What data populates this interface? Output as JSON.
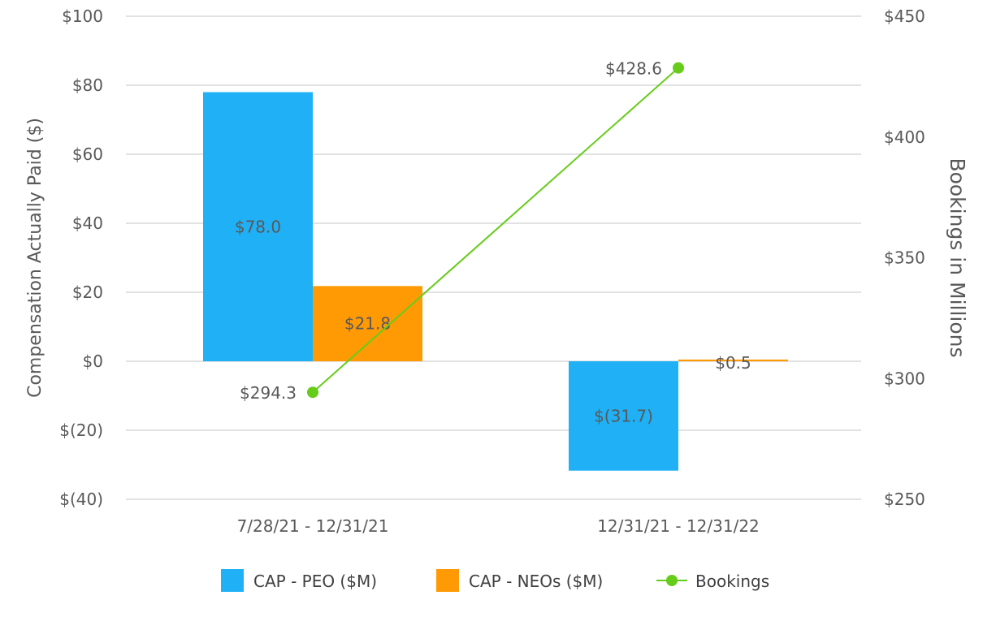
{
  "chart_data": {
    "type": "bar",
    "categories": [
      "7/28/21 - 12/31/21",
      "12/31/21 - 12/31/22"
    ],
    "series": [
      {
        "name": "CAP - PEO ($M)",
        "type": "bar",
        "axis": "left",
        "color": "#1fb0f5",
        "values": [
          78.0,
          -31.7
        ],
        "labels": [
          "$78.0",
          "$(31.7)"
        ]
      },
      {
        "name": "CAP - NEOs ($M)",
        "type": "bar",
        "axis": "left",
        "color": "#ff9a05",
        "values": [
          21.8,
          0.5
        ],
        "labels": [
          "$21.8",
          "$0.5"
        ]
      },
      {
        "name": "Bookings",
        "type": "line",
        "axis": "right",
        "color": "#66cc1a",
        "values": [
          294.3,
          428.6
        ],
        "labels": [
          "$294.3",
          "$428.6"
        ]
      }
    ],
    "y_left": {
      "label": "Compensation Actually Paid ($)",
      "ylim": [
        -40,
        100
      ],
      "ticks": [
        100,
        80,
        60,
        40,
        20,
        0,
        -20,
        -40
      ],
      "tick_labels": [
        "$100",
        "$80",
        "$60",
        "$40",
        "$20",
        "$0",
        "$(20)",
        "$(40)"
      ]
    },
    "y_right": {
      "label": "Bookings in Millions",
      "ylim": [
        250,
        450
      ],
      "ticks": [
        450,
        400,
        350,
        300,
        250
      ],
      "tick_labels": [
        "$450",
        "$400",
        "$350",
        "$300",
        "$250"
      ]
    },
    "legend": {
      "placement": "bottom",
      "items": [
        {
          "label": "CAP - PEO ($M)",
          "kind": "bar",
          "color": "#1fb0f5"
        },
        {
          "label": "CAP - NEOs ($M)",
          "kind": "bar",
          "color": "#ff9a05"
        },
        {
          "label": "Bookings",
          "kind": "line",
          "color": "#66cc1a"
        }
      ]
    },
    "grid": true
  }
}
